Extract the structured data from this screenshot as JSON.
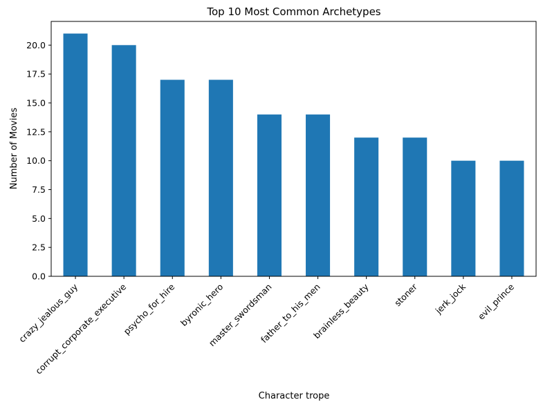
{
  "chart_data": {
    "type": "bar",
    "title": "Top 10 Most Common Archetypes",
    "xlabel": "Character trope",
    "ylabel": "Number of Movies",
    "categories": [
      "crazy_jealous_guy",
      "corrupt_corporate_executive",
      "psycho_for_hire",
      "byronic_hero",
      "master_swordsman",
      "father_to_his_men",
      "brainless_beauty",
      "stoner",
      "jerk_jock",
      "evil_prince"
    ],
    "values": [
      21,
      20,
      17,
      17,
      14,
      14,
      12,
      12,
      10,
      10
    ],
    "ylim": [
      0,
      22.05
    ],
    "yticks": [
      "0.0",
      "2.5",
      "5.0",
      "7.5",
      "10.0",
      "12.5",
      "15.0",
      "17.5",
      "20.0"
    ],
    "bar_color": "#1f77b4",
    "grid": false,
    "legend": "none"
  }
}
